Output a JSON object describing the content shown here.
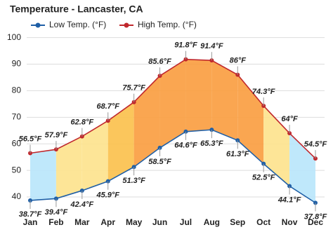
{
  "chart_data": {
    "type": "line",
    "title": "Temperature - Lancaster, CA",
    "categories": [
      "Jan",
      "Feb",
      "Mar",
      "Apr",
      "May",
      "Jun",
      "Jul",
      "Aug",
      "Sep",
      "Oct",
      "Nov",
      "Dec"
    ],
    "series": [
      {
        "name": "Low Temp. (°F)",
        "color": "#1f5fa6",
        "values": [
          38.7,
          39.4,
          42.4,
          45.9,
          51.3,
          58.5,
          64.6,
          65.3,
          61.3,
          52.5,
          44.1,
          37.8
        ],
        "value_labels": [
          "38.7°F",
          "39.4°F",
          "42.4°F",
          "45.9°F",
          "51.3°F",
          "58.5°F",
          "64.6°F",
          "65.3°F",
          "61.3°F",
          "52.5°F",
          "44.1°F",
          "37.8°F"
        ]
      },
      {
        "name": "High Temp. (°F)",
        "color": "#c0282d",
        "values": [
          56.5,
          57.9,
          62.8,
          68.7,
          75.7,
          85.6,
          91.8,
          91.4,
          86,
          74.3,
          64,
          54.5
        ],
        "value_labels": [
          "56.5°F",
          "57.9°F",
          "62.8°F",
          "68.7°F",
          "75.7°F",
          "85.6°F",
          "91.8°F",
          "91.4°F",
          "86°F",
          "74.3°F",
          "64°F",
          "54.5°F"
        ]
      }
    ],
    "ylim": [
      35,
      102
    ],
    "yticks": [
      40,
      50,
      60,
      70,
      80,
      90,
      100
    ],
    "grid": true
  }
}
